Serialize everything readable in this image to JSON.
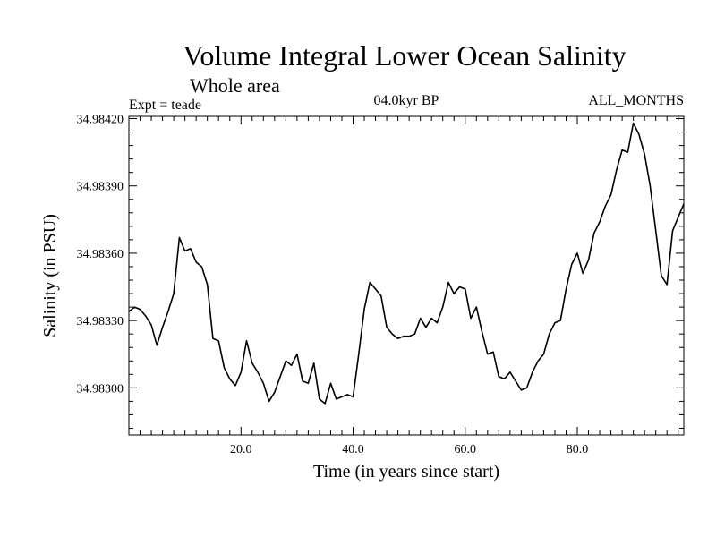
{
  "chart_data": {
    "type": "line",
    "title": "Volume Integral Lower Ocean Salinity",
    "subtitle": "Whole area",
    "experiment": "Expt = teade",
    "period": "04.0kyr BP",
    "months": "ALL_MONTHS",
    "xlabel": "Time (in years since start)",
    "ylabel": "Salinity (in PSU)",
    "xlim": [
      0,
      99
    ],
    "ylim": [
      34.98279,
      34.98421
    ],
    "x_ticks": [
      20,
      40,
      60,
      80
    ],
    "x_tick_labels": [
      "20.0",
      "40.0",
      "60.0",
      "80.0"
    ],
    "y_ticks": [
      34.983,
      34.9833,
      34.9836,
      34.9839,
      34.9842
    ],
    "y_tick_labels": [
      "34.98300",
      "34.98330",
      "34.98360",
      "34.98390",
      "34.98420"
    ],
    "series": [
      {
        "name": "Salinity",
        "x": [
          0,
          1,
          2,
          3,
          4,
          5,
          6,
          7,
          8,
          9,
          10,
          11,
          12,
          13,
          14,
          15,
          16,
          17,
          18,
          19,
          20,
          21,
          22,
          23,
          24,
          25,
          26,
          27,
          28,
          29,
          30,
          31,
          32,
          33,
          34,
          35,
          36,
          37,
          38,
          39,
          40,
          41,
          42,
          43,
          44,
          45,
          46,
          47,
          48,
          49,
          50,
          51,
          52,
          53,
          54,
          55,
          56,
          57,
          58,
          59,
          60,
          61,
          62,
          63,
          64,
          65,
          66,
          67,
          68,
          69,
          70,
          71,
          72,
          73,
          74,
          75,
          76,
          77,
          78,
          79,
          80,
          81,
          82,
          83,
          84,
          85,
          86,
          87,
          88,
          89,
          90,
          91,
          92,
          93,
          94,
          95,
          96,
          97,
          98,
          99
        ],
        "values": [
          34.98334,
          34.98336,
          34.98335,
          34.98332,
          34.98328,
          34.98319,
          34.98327,
          34.98334,
          34.98342,
          34.98367,
          34.98361,
          34.98362,
          34.98356,
          34.98354,
          34.98346,
          34.98322,
          34.98321,
          34.98309,
          34.98304,
          34.98301,
          34.98307,
          34.98321,
          34.98311,
          34.98307,
          34.98302,
          34.98294,
          34.98298,
          34.98305,
          34.98312,
          34.9831,
          34.98315,
          34.98303,
          34.98302,
          34.98311,
          34.98295,
          34.98293,
          34.98302,
          34.98295,
          34.98296,
          34.98297,
          34.98296,
          34.98315,
          34.98335,
          34.98347,
          34.98344,
          34.98341,
          34.98327,
          34.98324,
          34.98322,
          34.98323,
          34.98323,
          34.98324,
          34.98331,
          34.98327,
          34.98331,
          34.98329,
          34.98336,
          34.98347,
          34.98342,
          34.98345,
          34.98344,
          34.98331,
          34.98336,
          34.98325,
          34.98315,
          34.98316,
          34.98305,
          34.98304,
          34.98307,
          34.98303,
          34.98299,
          34.983,
          34.98307,
          34.98312,
          34.98315,
          34.98324,
          34.98329,
          34.9833,
          34.98344,
          34.98355,
          34.9836,
          34.98351,
          34.98357,
          34.98369,
          34.98374,
          34.98381,
          34.98386,
          34.98397,
          34.98406,
          34.98405,
          34.98418,
          34.98413,
          34.98404,
          34.9839,
          34.9837,
          34.9835,
          34.98346,
          34.9837,
          34.98376,
          34.98382
        ]
      }
    ]
  }
}
